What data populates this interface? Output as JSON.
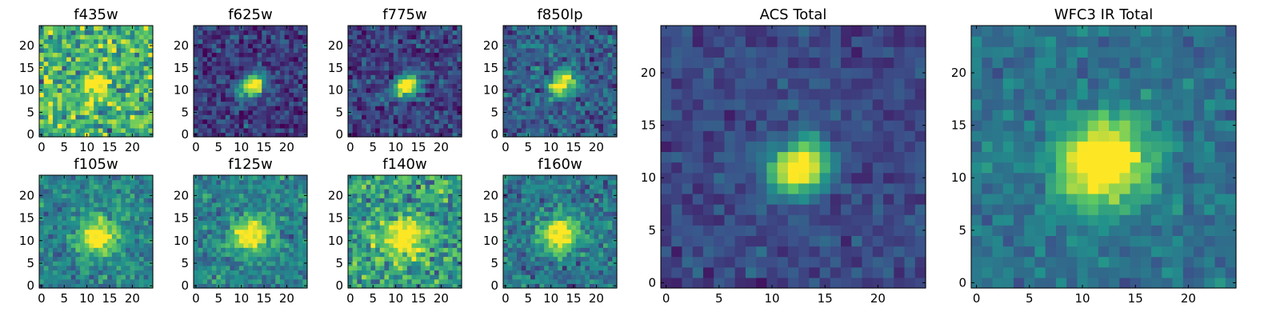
{
  "figure": {
    "background": "#ffffff",
    "colormap": "viridis",
    "colormap_stops": [
      "#440154",
      "#3b528b",
      "#21918c",
      "#5ec962",
      "#fde725"
    ]
  },
  "chart_data": [
    {
      "type": "heatmap",
      "title": "f435w",
      "grid_size": 25,
      "xlim": [
        0,
        24
      ],
      "ylim": [
        0,
        24
      ],
      "xticks": [
        0,
        5,
        10,
        15,
        20
      ],
      "yticks": [
        0,
        5,
        10,
        15,
        20
      ],
      "source": {
        "x": 12,
        "y": 11.5,
        "peak": 0.55,
        "sigma_x": 2.0,
        "sigma_y": 1.6,
        "rotation": -35
      },
      "background_level": 0.65,
      "noise": 0.22,
      "seed": 11
    },
    {
      "type": "heatmap",
      "title": "f625w",
      "grid_size": 25,
      "xlim": [
        0,
        24
      ],
      "ylim": [
        0,
        24
      ],
      "xticks": [
        0,
        5,
        10,
        15,
        20
      ],
      "yticks": [
        0,
        5,
        10,
        15,
        20
      ],
      "source": {
        "x": 12.5,
        "y": 11,
        "peak": 1.0,
        "sigma_x": 2.0,
        "sigma_y": 1.5,
        "rotation": -35
      },
      "background_level": 0.18,
      "noise": 0.12,
      "seed": 23
    },
    {
      "type": "heatmap",
      "title": "f775w",
      "grid_size": 25,
      "xlim": [
        0,
        24
      ],
      "ylim": [
        0,
        24
      ],
      "xticks": [
        0,
        5,
        10,
        15,
        20
      ],
      "yticks": [
        0,
        5,
        10,
        15,
        20
      ],
      "source": {
        "x": 12.5,
        "y": 11,
        "peak": 1.0,
        "sigma_x": 2.0,
        "sigma_y": 1.5,
        "rotation": -35
      },
      "background_level": 0.2,
      "noise": 0.12,
      "seed": 37
    },
    {
      "type": "heatmap",
      "title": "f850lp",
      "grid_size": 25,
      "xlim": [
        0,
        24
      ],
      "ylim": [
        0,
        24
      ],
      "xticks": [
        0,
        5,
        10,
        15,
        20
      ],
      "yticks": [
        0,
        5,
        10,
        15,
        20
      ],
      "source": {
        "x": 12.5,
        "y": 11.5,
        "peak": 0.9,
        "sigma_x": 2.0,
        "sigma_y": 1.5,
        "rotation": -35
      },
      "background_level": 0.3,
      "noise": 0.13,
      "seed": 41
    },
    {
      "type": "heatmap",
      "title": "f105w",
      "grid_size": 25,
      "xlim": [
        0,
        24
      ],
      "ylim": [
        0,
        24
      ],
      "xticks": [
        0,
        5,
        10,
        15,
        20
      ],
      "yticks": [
        0,
        5,
        10,
        15,
        20
      ],
      "source": {
        "x": 12.5,
        "y": 11,
        "peak": 0.7,
        "sigma_x": 2.8,
        "sigma_y": 2.6,
        "rotation": -30
      },
      "background_level": 0.45,
      "noise": 0.12,
      "seed": 53
    },
    {
      "type": "heatmap",
      "title": "f125w",
      "grid_size": 25,
      "xlim": [
        0,
        24
      ],
      "ylim": [
        0,
        24
      ],
      "xticks": [
        0,
        5,
        10,
        15,
        20
      ],
      "yticks": [
        0,
        5,
        10,
        15,
        20
      ],
      "source": {
        "x": 12,
        "y": 11.5,
        "peak": 0.7,
        "sigma_x": 2.8,
        "sigma_y": 2.5,
        "rotation": -30
      },
      "background_level": 0.45,
      "noise": 0.12,
      "seed": 67
    },
    {
      "type": "heatmap",
      "title": "f140w",
      "grid_size": 25,
      "xlim": [
        0,
        24
      ],
      "ylim": [
        0,
        24
      ],
      "xticks": [
        0,
        5,
        10,
        15,
        20
      ],
      "yticks": [
        0,
        5,
        10,
        15,
        20
      ],
      "source": {
        "x": 12,
        "y": 10.5,
        "peak": 0.55,
        "sigma_x": 3.2,
        "sigma_y": 3.2,
        "rotation": -30
      },
      "background_level": 0.55,
      "noise": 0.18,
      "seed": 71
    },
    {
      "type": "heatmap",
      "title": "f160w",
      "grid_size": 25,
      "xlim": [
        0,
        24
      ],
      "ylim": [
        0,
        24
      ],
      "xticks": [
        0,
        5,
        10,
        15,
        20
      ],
      "yticks": [
        0,
        5,
        10,
        15,
        20
      ],
      "source": {
        "x": 12,
        "y": 11.5,
        "peak": 0.75,
        "sigma_x": 2.8,
        "sigma_y": 2.6,
        "rotation": -30
      },
      "background_level": 0.4,
      "noise": 0.13,
      "seed": 83
    },
    {
      "type": "heatmap",
      "title": "ACS Total",
      "grid_size": 25,
      "xlim": [
        0,
        24
      ],
      "ylim": [
        0,
        24
      ],
      "xticks": [
        0,
        5,
        10,
        15,
        20
      ],
      "yticks": [
        0,
        5,
        10,
        15,
        20
      ],
      "source": {
        "x": 12.5,
        "y": 11,
        "peak": 1.0,
        "sigma_x": 2.0,
        "sigma_y": 1.6,
        "rotation": -35
      },
      "background_level": 0.22,
      "noise": 0.07,
      "seed": 97
    },
    {
      "type": "heatmap",
      "title": "WFC3 IR Total",
      "grid_size": 25,
      "xlim": [
        0,
        24
      ],
      "ylim": [
        0,
        24
      ],
      "xticks": [
        0,
        5,
        10,
        15,
        20
      ],
      "yticks": [
        0,
        5,
        10,
        15,
        20
      ],
      "source": {
        "x": 12,
        "y": 11.5,
        "peak": 0.85,
        "sigma_x": 3.0,
        "sigma_y": 2.8,
        "rotation": -30
      },
      "background_level": 0.38,
      "noise": 0.08,
      "seed": 101
    }
  ]
}
